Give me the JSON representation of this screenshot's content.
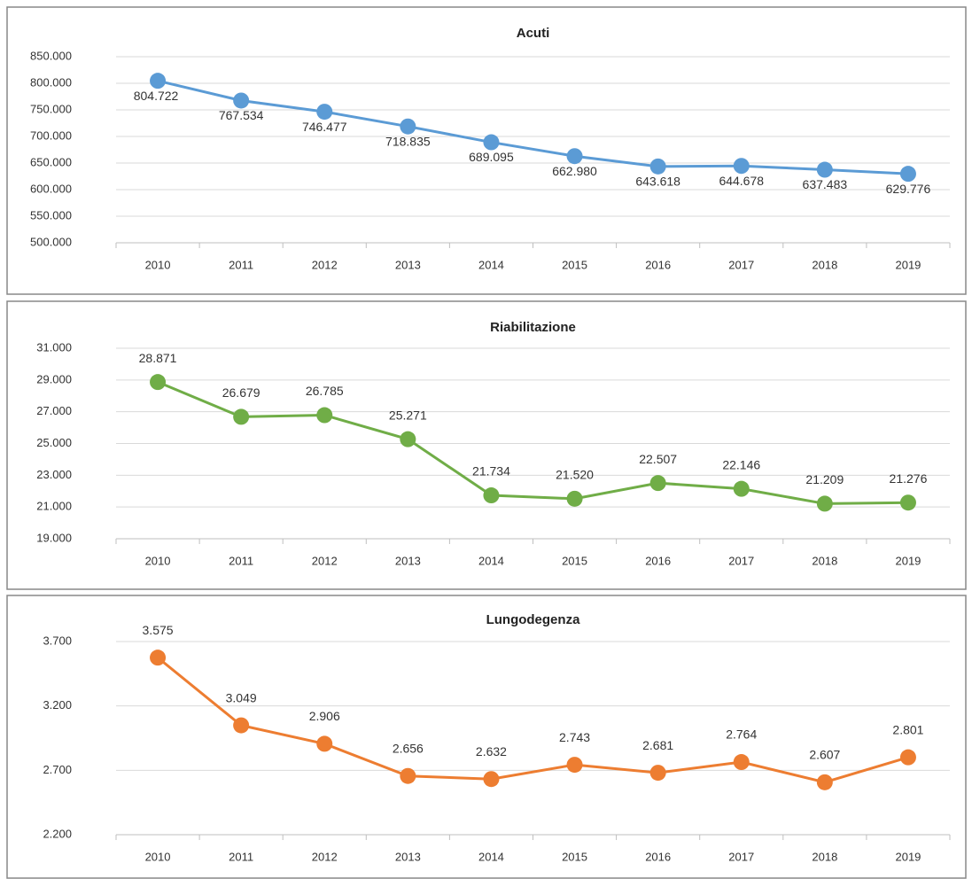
{
  "chart_data": [
    {
      "type": "line",
      "title": "Acuti",
      "categories": [
        "2010",
        "2011",
        "2012",
        "2013",
        "2014",
        "2015",
        "2016",
        "2017",
        "2018",
        "2019"
      ],
      "values": [
        804722,
        767534,
        746477,
        718835,
        689095,
        662980,
        643618,
        644678,
        637483,
        629776
      ],
      "value_labels": [
        "804.722",
        "767.534",
        "746.477",
        "718.835",
        "689.095",
        "662.980",
        "643.618",
        "644.678",
        "637.483",
        "629.776"
      ],
      "color": "#5b9bd5",
      "ylim": [
        500000,
        850000
      ],
      "yticks": [
        {
          "value": 500000,
          "label": "500.000"
        },
        {
          "value": 550000,
          "label": "550.000"
        },
        {
          "value": 600000,
          "label": "600.000"
        },
        {
          "value": 650000,
          "label": "650.000"
        },
        {
          "value": 700000,
          "label": "700.000"
        },
        {
          "value": 750000,
          "label": "750.000"
        },
        {
          "value": 800000,
          "label": "800.000"
        },
        {
          "value": 850000,
          "label": "850.000"
        }
      ],
      "grid": true
    },
    {
      "type": "line",
      "title": "Riabilitazione",
      "categories": [
        "2010",
        "2011",
        "2012",
        "2013",
        "2014",
        "2015",
        "2016",
        "2017",
        "2018",
        "2019"
      ],
      "values": [
        28871,
        26679,
        26785,
        25271,
        21734,
        21520,
        22507,
        22146,
        21209,
        21276
      ],
      "value_labels": [
        "28.871",
        "26.679",
        "26.785",
        "25.271",
        "21.734",
        "21.520",
        "22.507",
        "22.146",
        "21.209",
        "21.276"
      ],
      "color": "#70ad47",
      "ylim": [
        19000,
        31000
      ],
      "yticks": [
        {
          "value": 19000,
          "label": "19.000"
        },
        {
          "value": 21000,
          "label": "21.000"
        },
        {
          "value": 23000,
          "label": "23.000"
        },
        {
          "value": 25000,
          "label": "25.000"
        },
        {
          "value": 27000,
          "label": "27.000"
        },
        {
          "value": 29000,
          "label": "29.000"
        },
        {
          "value": 31000,
          "label": "31.000"
        }
      ],
      "grid": true
    },
    {
      "type": "line",
      "title": "Lungodegenza",
      "categories": [
        "2010",
        "2011",
        "2012",
        "2013",
        "2014",
        "2015",
        "2016",
        "2017",
        "2018",
        "2019"
      ],
      "values": [
        3575,
        3049,
        2906,
        2656,
        2632,
        2743,
        2681,
        2764,
        2607,
        2801
      ],
      "value_labels": [
        "3.575",
        "3.049",
        "2.906",
        "2.656",
        "2.632",
        "2.743",
        "2.681",
        "2.764",
        "2.607",
        "2.801"
      ],
      "color": "#ed7d31",
      "ylim": [
        2200,
        3700
      ],
      "yticks": [
        {
          "value": 2200,
          "label": "2.200"
        },
        {
          "value": 2700,
          "label": "2.700"
        },
        {
          "value": 3200,
          "label": "3.200"
        },
        {
          "value": 3700,
          "label": "3.700"
        }
      ],
      "grid": true
    }
  ]
}
